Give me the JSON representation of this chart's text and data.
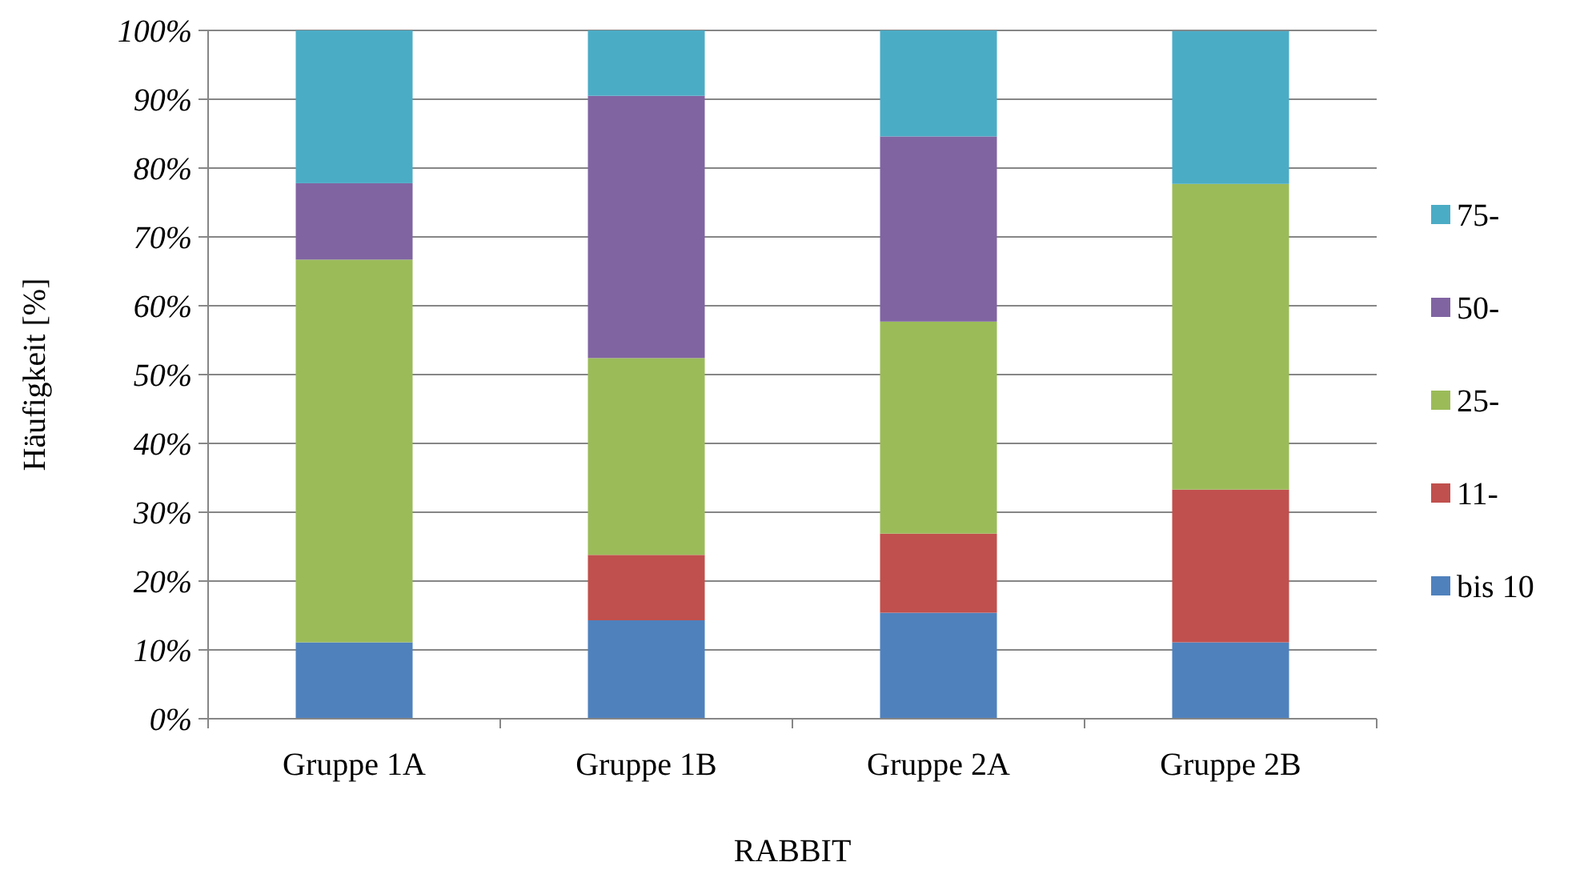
{
  "chart_data": {
    "type": "bar",
    "stacked": true,
    "xlabel": "RABBIT",
    "ylabel": "Häufigkeit [%]",
    "categories": [
      "Gruppe 1A",
      "Gruppe 1B",
      "Gruppe 2A",
      "Gruppe 2B"
    ],
    "series": [
      {
        "name": "bis 10",
        "color": "#4f81bd",
        "values": [
          11.1,
          14.3,
          15.4,
          11.1
        ]
      },
      {
        "name": "11-",
        "color": "#c0504d",
        "values": [
          0,
          9.5,
          11.5,
          22.2
        ]
      },
      {
        "name": "25-",
        "color": "#9bbb59",
        "values": [
          55.6,
          28.6,
          30.8,
          44.4
        ]
      },
      {
        "name": "50-",
        "color": "#8064a2",
        "values": [
          11.1,
          38.1,
          26.9,
          0
        ]
      },
      {
        "name": "75-",
        "color": "#4bacc6",
        "values": [
          22.2,
          9.5,
          15.4,
          22.2
        ]
      }
    ],
    "ylim": [
      0,
      100
    ],
    "yticks": [
      {
        "value": 0,
        "label": "0%"
      },
      {
        "value": 10,
        "label": "10%"
      },
      {
        "value": 20,
        "label": "20%"
      },
      {
        "value": 30,
        "label": "30%"
      },
      {
        "value": 40,
        "label": "40%"
      },
      {
        "value": 50,
        "label": "50%"
      },
      {
        "value": 60,
        "label": "60%"
      },
      {
        "value": 70,
        "label": "70%"
      },
      {
        "value": 80,
        "label": "80%"
      },
      {
        "value": 90,
        "label": "90%"
      },
      {
        "value": 100,
        "label": "100%"
      }
    ],
    "grid": "y",
    "legend": "right"
  }
}
